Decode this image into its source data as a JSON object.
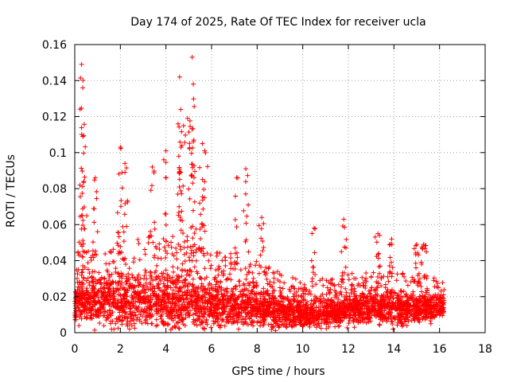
{
  "chart_data": {
    "type": "scatter",
    "title": "Day 174 of 2025, Rate Of TEC Index for receiver ucla",
    "xlabel": "GPS time / hours",
    "ylabel": "ROTI / TECUs",
    "xlim": [
      0,
      18
    ],
    "ylim": [
      0,
      0.16
    ],
    "xticks": [
      "0",
      "2",
      "4",
      "6",
      "8",
      "10",
      "12",
      "14",
      "16",
      "18"
    ],
    "yticks": [
      "0",
      "0.02",
      "0.04",
      "0.06",
      "0.08",
      "0.1",
      "0.12",
      "0.14",
      "0.16"
    ],
    "grid": true,
    "marker": "+",
    "color": "#ff0000",
    "data_range_hours": [
      0,
      16.2
    ],
    "series": [
      {
        "name": "ROTI",
        "peaks": [
          {
            "x": 0.3,
            "y": 0.149
          },
          {
            "x": 0.35,
            "y": 0.136
          },
          {
            "x": 0.35,
            "y": 0.109
          },
          {
            "x": 0.4,
            "y": 0.084
          },
          {
            "x": 0.9,
            "y": 0.086
          },
          {
            "x": 2.0,
            "y": 0.103
          },
          {
            "x": 2.2,
            "y": 0.094
          },
          {
            "x": 3.4,
            "y": 0.092
          },
          {
            "x": 4.0,
            "y": 0.101
          },
          {
            "x": 4.6,
            "y": 0.142
          },
          {
            "x": 4.65,
            "y": 0.124
          },
          {
            "x": 4.7,
            "y": 0.104
          },
          {
            "x": 4.95,
            "y": 0.119
          },
          {
            "x": 5.15,
            "y": 0.153
          },
          {
            "x": 5.2,
            "y": 0.138
          },
          {
            "x": 5.2,
            "y": 0.106
          },
          {
            "x": 5.6,
            "y": 0.105
          },
          {
            "x": 5.7,
            "y": 0.101
          },
          {
            "x": 7.5,
            "y": 0.091
          },
          {
            "x": 7.1,
            "y": 0.086
          },
          {
            "x": 8.2,
            "y": 0.064
          },
          {
            "x": 10.5,
            "y": 0.058
          },
          {
            "x": 11.8,
            "y": 0.063
          },
          {
            "x": 13.3,
            "y": 0.055
          },
          {
            "x": 13.9,
            "y": 0.052
          },
          {
            "x": 15.0,
            "y": 0.049
          },
          {
            "x": 15.3,
            "y": 0.049
          }
        ],
        "baseline_envelope": [
          {
            "x": 0,
            "low": 0.008,
            "high": 0.04
          },
          {
            "x": 2,
            "low": 0.006,
            "high": 0.045
          },
          {
            "x": 4,
            "low": 0.004,
            "high": 0.048
          },
          {
            "x": 6,
            "low": 0.005,
            "high": 0.042
          },
          {
            "x": 8,
            "low": 0.005,
            "high": 0.035
          },
          {
            "x": 10,
            "low": 0.003,
            "high": 0.025
          },
          {
            "x": 12,
            "low": 0.006,
            "high": 0.03
          },
          {
            "x": 14,
            "low": 0.006,
            "high": 0.03
          },
          {
            "x": 16.2,
            "low": 0.008,
            "high": 0.028
          }
        ]
      }
    ]
  }
}
